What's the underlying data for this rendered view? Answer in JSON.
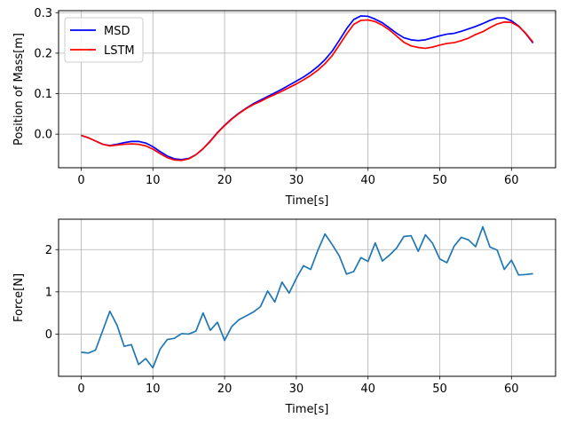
{
  "chart_data": [
    {
      "type": "line",
      "xlabel": "Time[s]",
      "ylabel": "Position of Mass[m]",
      "xlim": [
        -3.15,
        66.15
      ],
      "ylim": [
        -0.083,
        0.305
      ],
      "xticks": [
        0,
        10,
        20,
        30,
        40,
        50,
        60
      ],
      "xtick_labels": [
        "0",
        "10",
        "20",
        "30",
        "40",
        "50",
        "60"
      ],
      "yticks": [
        0.0,
        0.1,
        0.2,
        0.3
      ],
      "ytick_labels": [
        "0.0",
        "0.1",
        "0.2",
        "0.3"
      ],
      "grid": true,
      "legend": "upper-left",
      "x": [
        0,
        1,
        2,
        3,
        4,
        5,
        6,
        7,
        8,
        9,
        10,
        11,
        12,
        13,
        14,
        15,
        16,
        17,
        18,
        19,
        20,
        21,
        22,
        23,
        24,
        25,
        26,
        27,
        28,
        29,
        30,
        31,
        32,
        33,
        34,
        35,
        36,
        37,
        38,
        39,
        40,
        41,
        42,
        43,
        44,
        45,
        46,
        47,
        48,
        49,
        50,
        51,
        52,
        53,
        54,
        55,
        56,
        57,
        58,
        59,
        60,
        61,
        62,
        63
      ],
      "series": [
        {
          "name": "MSD",
          "color": "#0000ff",
          "values": [
            -0.003,
            -0.009,
            -0.017,
            -0.025,
            -0.028,
            -0.025,
            -0.021,
            -0.018,
            -0.018,
            -0.022,
            -0.031,
            -0.043,
            -0.054,
            -0.061,
            -0.063,
            -0.06,
            -0.051,
            -0.036,
            -0.017,
            0.004,
            0.022,
            0.038,
            0.052,
            0.064,
            0.075,
            0.084,
            0.093,
            0.102,
            0.111,
            0.121,
            0.131,
            0.141,
            0.153,
            0.167,
            0.184,
            0.205,
            0.232,
            0.26,
            0.283,
            0.292,
            0.291,
            0.284,
            0.275,
            0.262,
            0.249,
            0.238,
            0.233,
            0.231,
            0.233,
            0.238,
            0.243,
            0.247,
            0.249,
            0.254,
            0.26,
            0.266,
            0.273,
            0.281,
            0.287,
            0.287,
            0.28,
            0.267,
            0.248,
            0.225
          ]
        },
        {
          "name": "LSTM",
          "color": "#ff0000",
          "values": [
            -0.003,
            -0.009,
            -0.017,
            -0.025,
            -0.029,
            -0.027,
            -0.025,
            -0.024,
            -0.025,
            -0.029,
            -0.037,
            -0.048,
            -0.058,
            -0.064,
            -0.065,
            -0.061,
            -0.051,
            -0.036,
            -0.018,
            0.003,
            0.021,
            0.037,
            0.051,
            0.063,
            0.073,
            0.081,
            0.09,
            0.098,
            0.106,
            0.115,
            0.124,
            0.134,
            0.145,
            0.158,
            0.174,
            0.194,
            0.22,
            0.247,
            0.271,
            0.281,
            0.282,
            0.278,
            0.269,
            0.257,
            0.242,
            0.227,
            0.218,
            0.214,
            0.212,
            0.215,
            0.22,
            0.224,
            0.226,
            0.231,
            0.237,
            0.246,
            0.253,
            0.263,
            0.272,
            0.277,
            0.276,
            0.266,
            0.249,
            0.227
          ]
        }
      ]
    },
    {
      "type": "line",
      "xlabel": "Time[s]",
      "ylabel": "Force[N]",
      "xlim": [
        -3.15,
        66.15
      ],
      "ylim": [
        -1.0,
        2.72
      ],
      "xticks": [
        0,
        10,
        20,
        30,
        40,
        50,
        60
      ],
      "xtick_labels": [
        "0",
        "10",
        "20",
        "30",
        "40",
        "50",
        "60"
      ],
      "yticks": [
        0,
        1,
        2
      ],
      "ytick_labels": [
        "0",
        "1",
        "2"
      ],
      "grid": true,
      "x": [
        0,
        1,
        2,
        3,
        4,
        5,
        6,
        7,
        8,
        9,
        10,
        11,
        12,
        13,
        14,
        15,
        16,
        17,
        18,
        19,
        20,
        21,
        22,
        23,
        24,
        25,
        26,
        27,
        28,
        29,
        30,
        31,
        32,
        33,
        34,
        35,
        36,
        37,
        38,
        39,
        40,
        41,
        42,
        43,
        44,
        45,
        46,
        47,
        48,
        49,
        50,
        51,
        52,
        53,
        54,
        55,
        56,
        57,
        58,
        59,
        60,
        61,
        62,
        63
      ],
      "series": [
        {
          "color": "#1f77b4",
          "values": [
            -0.43,
            -0.45,
            -0.38,
            0.08,
            0.54,
            0.21,
            -0.29,
            -0.25,
            -0.72,
            -0.58,
            -0.8,
            -0.36,
            -0.13,
            -0.1,
            0.01,
            0.0,
            0.07,
            0.5,
            0.09,
            0.28,
            -0.15,
            0.18,
            0.34,
            0.43,
            0.52,
            0.65,
            1.02,
            0.76,
            1.23,
            0.97,
            1.32,
            1.62,
            1.53,
            1.98,
            2.37,
            2.12,
            1.85,
            1.42,
            1.48,
            1.81,
            1.72,
            2.16,
            1.73,
            1.87,
            2.04,
            2.31,
            2.33,
            1.96,
            2.35,
            2.15,
            1.78,
            1.69,
            2.08,
            2.29,
            2.23,
            2.07,
            2.54,
            2.06,
            1.99,
            1.53,
            1.75,
            1.4,
            1.41,
            1.43
          ]
        }
      ]
    }
  ]
}
